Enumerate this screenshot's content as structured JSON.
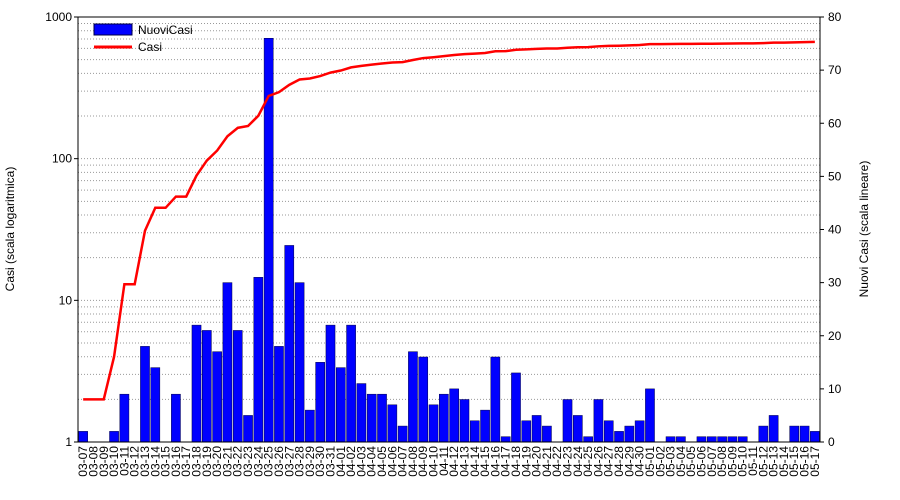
{
  "chart_data": {
    "type": "bar-line",
    "y_label": "Casi (scala logaritmica)",
    "y2_label": "Nuovi Casi (scala lineare)",
    "categories": [
      "03-07",
      "03-08",
      "03-09",
      "03-10",
      "03-11",
      "03-12",
      "03-13",
      "03-14",
      "03-15",
      "03-16",
      "03-17",
      "03-18",
      "03-19",
      "03-20",
      "03-21",
      "03-22",
      "03-23",
      "03-24",
      "03-25",
      "03-26",
      "03-27",
      "03-28",
      "03-29",
      "03-30",
      "03-31",
      "04-01",
      "04-02",
      "04-03",
      "04-04",
      "04-05",
      "04-06",
      "04-07",
      "04-08",
      "04-09",
      "04-10",
      "04-11",
      "04-12",
      "04-13",
      "04-14",
      "04-15",
      "04-16",
      "04-17",
      "04-18",
      "04-19",
      "04-20",
      "04-21",
      "04-22",
      "04-23",
      "04-24",
      "04-25",
      "04-26",
      "04-27",
      "04-28",
      "04-29",
      "04-30",
      "05-01",
      "05-02",
      "05-03",
      "05-04",
      "05-05",
      "05-06",
      "05-07",
      "05-08",
      "05-09",
      "05-10",
      "05-11",
      "05-12",
      "05-13",
      "05-14",
      "05-15",
      "05-16",
      "05-17"
    ],
    "series": [
      {
        "name": "NuoviCasi",
        "kind": "bar",
        "axis": "y2",
        "color": "#0000ff",
        "values": [
          2,
          0,
          0,
          2,
          9,
          0,
          18,
          14,
          0,
          9,
          0,
          22,
          21,
          17,
          30,
          21,
          5,
          31,
          76,
          18,
          37,
          30,
          6,
          15,
          22,
          14,
          22,
          11,
          9,
          9,
          7,
          3,
          17,
          16,
          7,
          9,
          10,
          8,
          4,
          6,
          16,
          1,
          13,
          4,
          5,
          3,
          0,
          8,
          5,
          1,
          8,
          4,
          2,
          3,
          4,
          10,
          0,
          1,
          1,
          0,
          1,
          1,
          1,
          1,
          1,
          0,
          3,
          5,
          0,
          3,
          3,
          2
        ]
      },
      {
        "name": "Casi",
        "kind": "line",
        "axis": "y",
        "color": "#ff0000",
        "values": [
          2,
          2,
          2,
          4,
          13,
          13,
          31,
          45,
          45,
          54,
          54,
          76,
          97,
          114,
          144,
          165,
          170,
          201,
          277,
          295,
          332,
          362,
          368,
          383,
          405,
          419,
          441,
          452,
          461,
          470,
          477,
          480,
          497,
          513,
          520,
          529,
          539,
          547,
          551,
          557,
          573,
          574,
          587,
          591,
          596,
          599,
          599,
          607,
          612,
          613,
          621,
          625,
          627,
          630,
          634,
          644,
          644,
          645,
          646,
          646,
          647,
          648,
          649,
          650,
          651,
          651,
          654,
          659,
          659,
          662,
          665,
          667
        ]
      }
    ],
    "log_y": true,
    "ylim": [
      1,
      1000
    ],
    "yticks": [
      1,
      10,
      100,
      1000
    ],
    "yminor_ticks": [
      2,
      3,
      4,
      5,
      6,
      7,
      8,
      9,
      20,
      30,
      40,
      50,
      60,
      70,
      80,
      90,
      200,
      300,
      400,
      500,
      600,
      700,
      800,
      900
    ],
    "y2lim": [
      0,
      80
    ],
    "y2ticks": [
      0,
      10,
      20,
      30,
      40,
      50,
      60,
      70,
      80
    ],
    "grid": true,
    "legend": "top-left"
  }
}
